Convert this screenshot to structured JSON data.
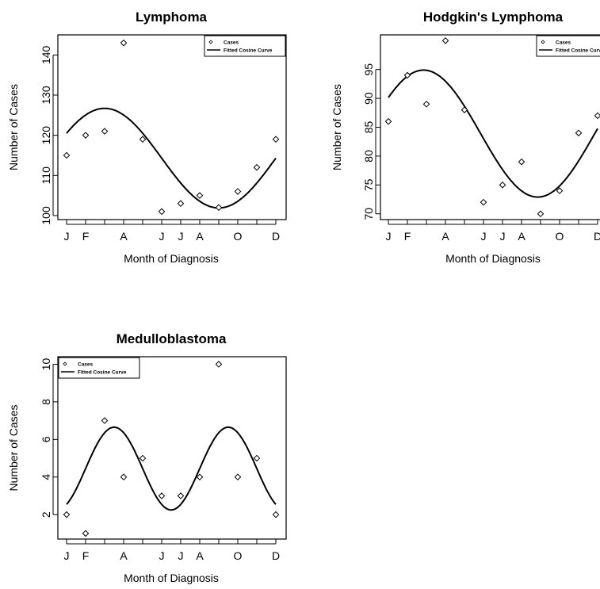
{
  "chart_data": [
    {
      "type": "scatter",
      "title": "Lymphoma",
      "xlabel": "Month of Diagnosis",
      "ylabel": "Number of Cases",
      "x_ticks": [
        "J",
        "F",
        "",
        "A",
        "",
        "J",
        "J",
        "A",
        "",
        "O",
        "",
        "D"
      ],
      "ylim": [
        99,
        145
      ],
      "y_ticks": [
        100,
        110,
        120,
        130,
        140
      ],
      "legend": {
        "position": "top-right",
        "entries": [
          "Cases",
          "Fitted Cosine Curve"
        ]
      },
      "series": [
        {
          "name": "Cases",
          "kind": "points",
          "values": [
            115,
            120,
            121,
            143,
            119,
            101,
            103,
            105,
            102,
            106,
            112,
            119
          ]
        },
        {
          "name": "Fitted Cosine Curve",
          "kind": "cosine",
          "mean": 114.3,
          "amplitude": 12.4,
          "period_months": 12,
          "peak_month": 2.0
        }
      ]
    },
    {
      "type": "scatter",
      "title": "Hodgkin's Lymphoma",
      "xlabel": "Month of Diagnosis",
      "ylabel": "Number of Cases",
      "x_ticks": [
        "J",
        "F",
        "",
        "A",
        "",
        "J",
        "J",
        "A",
        "",
        "O",
        "",
        "D"
      ],
      "ylim": [
        69,
        101
      ],
      "y_ticks": [
        70,
        75,
        80,
        85,
        90,
        95
      ],
      "legend": {
        "position": "top-right",
        "entries": [
          "Cases",
          "Fitted Cosine Curve"
        ]
      },
      "series": [
        {
          "name": "Cases",
          "kind": "points",
          "values": [
            86,
            94,
            89,
            100,
            88,
            72,
            75,
            79,
            70,
            74,
            84,
            87
          ]
        },
        {
          "name": "Fitted Cosine Curve",
          "kind": "cosine",
          "mean": 83.9,
          "amplitude": 11.0,
          "period_months": 12,
          "peak_month": 1.85
        }
      ]
    },
    {
      "type": "scatter",
      "title": "Medulloblastoma",
      "xlabel": "Month of Diagnosis",
      "ylabel": "Number of Cases",
      "x_ticks": [
        "J",
        "F",
        "",
        "A",
        "",
        "J",
        "J",
        "A",
        "",
        "O",
        "",
        "D"
      ],
      "ylim": [
        0.7,
        10.4
      ],
      "y_ticks": [
        2,
        4,
        6,
        8,
        10
      ],
      "legend": {
        "position": "top-left",
        "entries": [
          "Cases",
          "Fitted Cosine Curve"
        ]
      },
      "series": [
        {
          "name": "Cases",
          "kind": "points",
          "values": [
            2,
            1,
            7,
            4,
            5,
            3,
            3,
            4,
            10,
            4,
            5,
            2
          ]
        },
        {
          "name": "Fitted Cosine Curve",
          "kind": "cosine",
          "mean": 4.45,
          "amplitude": 2.2,
          "period_months": 6,
          "peak_month": 2.5
        }
      ]
    }
  ]
}
